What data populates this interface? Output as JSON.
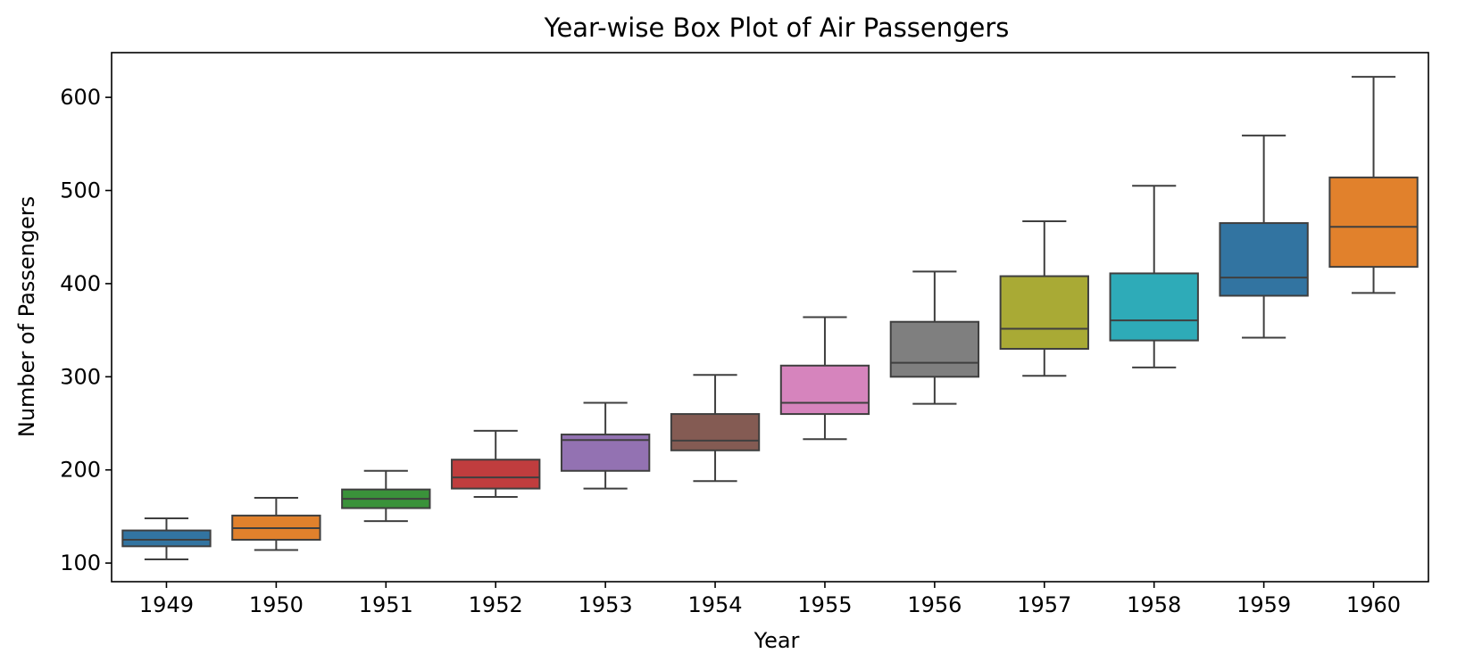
{
  "chart_data": {
    "type": "box",
    "title": "Year-wise Box Plot of Air Passengers",
    "xlabel": "Year",
    "ylabel": "Number of Passengers",
    "ylim": [
      80,
      648
    ],
    "yticks": [
      100,
      200,
      300,
      400,
      500,
      600
    ],
    "grid": false,
    "legend": "none",
    "categories": [
      "1949",
      "1950",
      "1951",
      "1952",
      "1953",
      "1954",
      "1955",
      "1956",
      "1957",
      "1958",
      "1959",
      "1960"
    ],
    "boxes": [
      {
        "year": "1949",
        "whisker_low": 104,
        "q1": 118,
        "median": 125,
        "q3": 135,
        "whisker_high": 148,
        "color": "#3274a1"
      },
      {
        "year": "1950",
        "whisker_low": 114,
        "q1": 125,
        "median": 137.5,
        "q3": 151,
        "whisker_high": 170,
        "color": "#e1812c"
      },
      {
        "year": "1951",
        "whisker_low": 145,
        "q1": 159,
        "median": 169,
        "q3": 179,
        "whisker_high": 199,
        "color": "#3a923a"
      },
      {
        "year": "1952",
        "whisker_low": 171,
        "q1": 180,
        "median": 192,
        "q3": 211,
        "whisker_high": 242,
        "color": "#c03d3e"
      },
      {
        "year": "1953",
        "whisker_low": 180,
        "q1": 199,
        "median": 232,
        "q3": 238,
        "whisker_high": 272,
        "color": "#9372b2"
      },
      {
        "year": "1954",
        "whisker_low": 188,
        "q1": 221,
        "median": 231.5,
        "q3": 260,
        "whisker_high": 302,
        "color": "#845b53"
      },
      {
        "year": "1955",
        "whisker_low": 233,
        "q1": 260,
        "median": 272,
        "q3": 312,
        "whisker_high": 364,
        "color": "#d684bd"
      },
      {
        "year": "1956",
        "whisker_low": 271,
        "q1": 300,
        "median": 315,
        "q3": 359,
        "whisker_high": 413,
        "color": "#7f7f7f"
      },
      {
        "year": "1957",
        "whisker_low": 301,
        "q1": 330,
        "median": 351.5,
        "q3": 408,
        "whisker_high": 467,
        "color": "#a9aa35"
      },
      {
        "year": "1958",
        "whisker_low": 310,
        "q1": 339,
        "median": 360.5,
        "q3": 411,
        "whisker_high": 505,
        "color": "#2eabb8"
      },
      {
        "year": "1959",
        "whisker_low": 342,
        "q1": 387,
        "median": 406.5,
        "q3": 465,
        "whisker_high": 559,
        "color": "#3274a1"
      },
      {
        "year": "1960",
        "whisker_low": 390,
        "q1": 418,
        "median": 461,
        "q3": 514,
        "whisker_high": 622,
        "color": "#e1812c"
      }
    ]
  }
}
